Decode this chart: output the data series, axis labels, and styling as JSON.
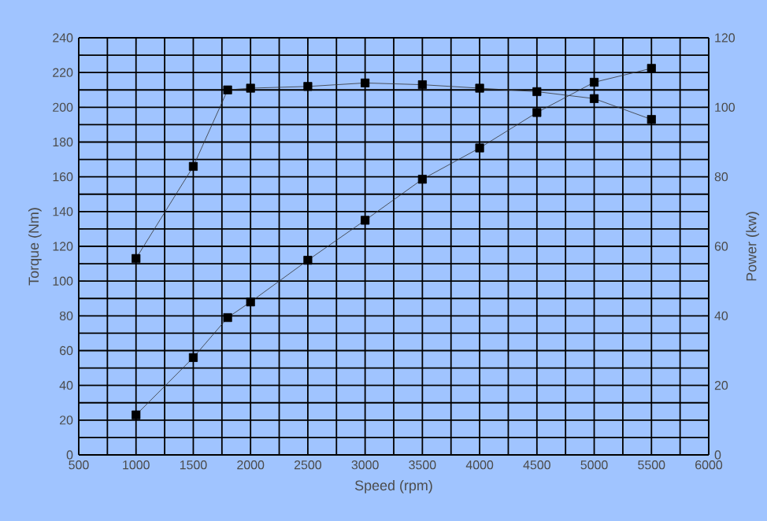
{
  "chart_data": {
    "type": "line",
    "xlabel": "Speed (rpm)",
    "ylabel": "Torque (Nm)",
    "y2label": "Power (kw)",
    "xlim": [
      500,
      6000
    ],
    "xticks": [
      500,
      1000,
      1500,
      2000,
      2500,
      3000,
      3500,
      4000,
      4500,
      5000,
      5500,
      6000
    ],
    "ylim": [
      0,
      240
    ],
    "yticks": [
      0,
      20,
      40,
      60,
      80,
      100,
      120,
      140,
      160,
      180,
      200,
      220,
      240
    ],
    "y2lim": [
      0,
      120
    ],
    "y2ticks": [
      0,
      20,
      40,
      60,
      80,
      100,
      120
    ],
    "grid": true,
    "marker": "square",
    "line_style": "solid",
    "series": [
      {
        "color": "#333333",
        "x": [
          1000,
          1500,
          1800,
          2000,
          2500,
          3000,
          3500,
          4000,
          4500,
          5000,
          5500
        ],
        "values": [
          113,
          166,
          210,
          211,
          212,
          214,
          213,
          211,
          209,
          205,
          193
        ]
      },
      {
        "color": "#333333",
        "axis": "y2",
        "x": [
          1000,
          1500,
          1800,
          2000,
          2500,
          3000,
          3500,
          4000,
          4500,
          5000,
          5500
        ],
        "values": [
          11.5,
          28,
          39.5,
          44,
          56,
          67.5,
          79.3,
          88.3,
          98.5,
          107.2,
          111.2
        ]
      }
    ]
  }
}
